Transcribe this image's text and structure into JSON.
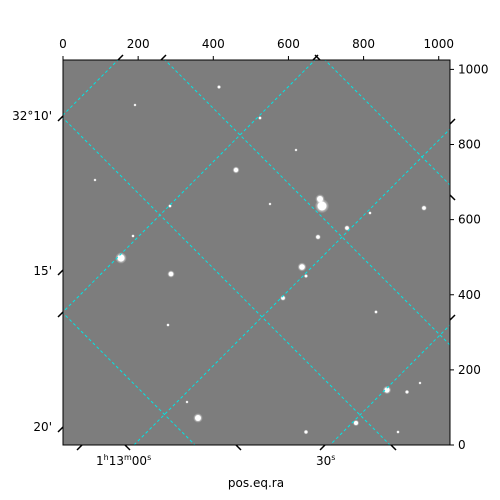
{
  "image": {
    "name": "grayscale-star-field",
    "background_color": "#7d7d7d",
    "frame_color": "#000000",
    "grid_color": "#00e5e5"
  },
  "pixel_axes": {
    "top_ticks": [
      "0",
      "200",
      "400",
      "600",
      "800",
      "1000"
    ],
    "right_ticks": [
      "0",
      "200",
      "400",
      "600",
      "800",
      "1000"
    ]
  },
  "world_axes": {
    "left_ticks": [
      "32°10'",
      "15'",
      "20'"
    ],
    "bottom_ticks": [
      {
        "main": "1",
        "sup1": "h",
        "mid": "13",
        "sup2": "m",
        "tail": "00",
        "sup3": "s"
      },
      {
        "main": "30",
        "sup1": "s",
        "mid": "",
        "sup2": "",
        "tail": "",
        "sup3": ""
      }
    ],
    "xlabel": "pos.eq.ra"
  }
}
